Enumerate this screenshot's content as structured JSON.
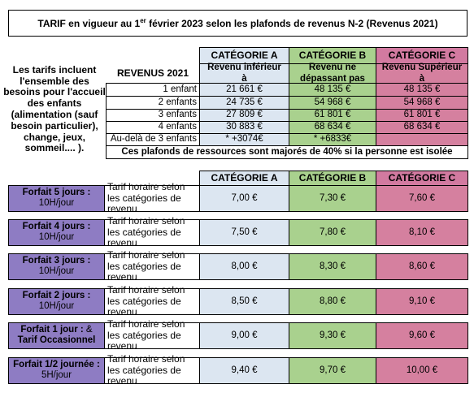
{
  "header": {
    "title_before": "TARIF en vigueur au 1",
    "title_sup": "er",
    "title_after": " février 2023 selon les plafonds de revenus N-2 (Revenus 2021)"
  },
  "note": "Les tarifs incluent l'ensemble des besoins pour l'accueil des enfants (alimentation (sauf besoin particulier), change, jeux, sommeil.... ).",
  "income_table": {
    "corner": "REVENUS 2021",
    "categories": [
      "CATÉGORIE A",
      "CATÉGORIE B",
      "CATÉGORIE C"
    ],
    "subheaders": [
      "Revenu inférieur à",
      "Revenu ne dépassant pas",
      "Revenu Supérieur à"
    ],
    "rows": [
      {
        "label": "1 enfant",
        "values": [
          "21 661 €",
          "48 135 €",
          "48 135 €"
        ]
      },
      {
        "label": "2 enfants",
        "values": [
          "24 735 €",
          "54 968 €",
          "54 968 €"
        ]
      },
      {
        "label": "3 enfants",
        "values": [
          "27 809 €",
          "61 801 €",
          "61 801 €"
        ]
      },
      {
        "label": "4 enfants",
        "values": [
          "30 883 €",
          "68 634 €",
          "68 634 €"
        ]
      },
      {
        "label": "Au-delà de 3 enfants",
        "values": [
          "* +3074€",
          "* +6833€"
        ]
      }
    ],
    "footnote": "Ces plafonds de ressources sont majorés de 40% si la personne est isolée"
  },
  "rates_table": {
    "categories": [
      "CATÉGORIE A",
      "CATÉGORIE B",
      "CATÉGORIE C"
    ],
    "rows": [
      {
        "label": [
          {
            "text": "Forfait 5 jours :",
            "bold": true
          },
          {
            "text": "10H/jour",
            "bold": false
          }
        ],
        "description": "Tarif horaire selon les catégories de revenu",
        "values": [
          "7,00 €",
          "7,30 €",
          "7,60 €"
        ]
      },
      {
        "label": [
          {
            "text": "Forfait 4 jours :",
            "bold": true
          },
          {
            "text": "10H/jour",
            "bold": false
          }
        ],
        "description": "Tarif horaire selon les catégories de revenu",
        "values": [
          "7,50 €",
          "7,80 €",
          "8,10 €"
        ]
      },
      {
        "label": [
          {
            "text": "Forfait 3 jours :",
            "bold": true
          },
          {
            "text": "10H/jour",
            "bold": false
          }
        ],
        "description": "Tarif horaire selon les catégories de revenu",
        "values": [
          "8,00 €",
          "8,30 €",
          "8,60 €"
        ]
      },
      {
        "label": [
          {
            "text": "Forfait 2 jours :",
            "bold": true
          },
          {
            "text": "10H/jour",
            "bold": false
          }
        ],
        "description": "Tarif horaire selon les catégories de revenu",
        "values": [
          "8,50 €",
          "8,80 €",
          "9,10 €"
        ]
      },
      {
        "label": [
          {
            "text": "Forfait 1 jour :",
            "bold": true
          },
          {
            "text": "&",
            "bold": false
          },
          {
            "text": "Tarif Occasionnel",
            "bold": true
          }
        ],
        "description": "Tarif horaire selon les catégories de revenu",
        "values": [
          "9,00 €",
          "9,30 €",
          "9,60 €"
        ]
      },
      {
        "label": [
          {
            "text": "Forfait 1/2 journée :",
            "bold": true
          },
          {
            "text": "5H/jour",
            "bold": false
          }
        ],
        "description": "Tarif horaire selon les catégories de revenu",
        "values": [
          "9,40 €",
          "9,70 €",
          "10,00 €"
        ]
      }
    ]
  }
}
